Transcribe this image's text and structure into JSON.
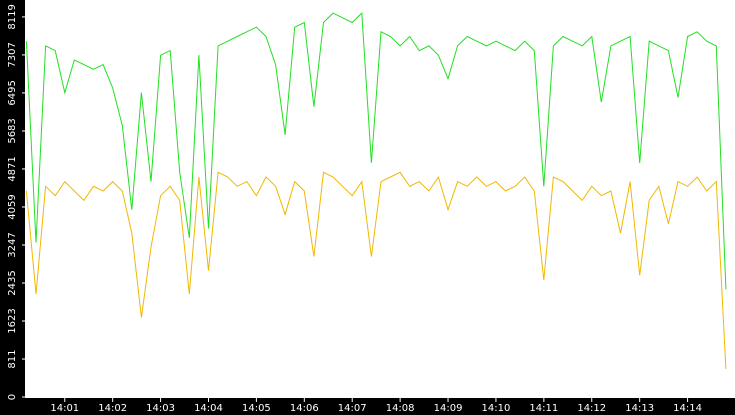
{
  "chart_data": {
    "type": "line",
    "x": [
      0.2,
      0.4,
      0.6,
      0.8,
      1.0,
      1.2,
      1.4,
      1.6,
      1.8,
      2.0,
      2.2,
      2.4,
      2.6,
      2.8,
      3.0,
      3.2,
      3.4,
      3.6,
      3.8,
      4.0,
      4.2,
      4.4,
      4.6,
      4.8,
      5.0,
      5.2,
      5.4,
      5.6,
      5.8,
      6.0,
      6.2,
      6.4,
      6.6,
      6.8,
      7.0,
      7.2,
      7.4,
      7.6,
      7.8,
      8.0,
      8.2,
      8.4,
      8.6,
      8.8,
      9.0,
      9.2,
      9.4,
      9.6,
      9.8,
      10.0,
      10.2,
      10.4,
      10.6,
      10.8,
      11.0,
      11.2,
      11.4,
      11.6,
      11.8,
      12.0,
      12.2,
      12.4,
      12.6,
      12.8,
      13.0,
      13.2,
      13.4,
      13.6,
      13.8,
      14.0,
      14.2,
      14.4,
      14.6,
      14.8
    ],
    "series": [
      {
        "color": "#22e022",
        "values": [
          7600,
          3300,
          7500,
          7400,
          6500,
          7200,
          7100,
          7000,
          7100,
          6600,
          5800,
          4000,
          6500,
          4600,
          7300,
          7400,
          4800,
          3400,
          7300,
          3600,
          7500,
          7600,
          7700,
          7800,
          7900,
          7700,
          7100,
          5600,
          7900,
          8000,
          6200,
          8000,
          8200,
          8100,
          8000,
          8200,
          5000,
          7800,
          7700,
          7500,
          7700,
          7400,
          7500,
          7300,
          6800,
          7500,
          7700,
          7600,
          7500,
          7600,
          7500,
          7400,
          7600,
          7400,
          4500,
          7500,
          7700,
          7600,
          7500,
          7700,
          6300,
          7500,
          7600,
          7700,
          5000,
          7600,
          7500,
          7400,
          6400,
          7700,
          7800,
          7600,
          7500,
          2300
        ]
      },
      {
        "color": "#f0b800",
        "values": [
          4400,
          2200,
          4500,
          4300,
          4600,
          4400,
          4200,
          4500,
          4400,
          4600,
          4400,
          3500,
          1700,
          3200,
          4300,
          4500,
          4200,
          2200,
          4700,
          2700,
          4800,
          4700,
          4500,
          4600,
          4300,
          4700,
          4500,
          3900,
          4600,
          4400,
          3000,
          4800,
          4700,
          4500,
          4300,
          4600,
          3000,
          4600,
          4700,
          4800,
          4500,
          4600,
          4400,
          4700,
          4000,
          4600,
          4500,
          4700,
          4500,
          4600,
          4400,
          4500,
          4700,
          4400,
          2500,
          4700,
          4600,
          4400,
          4200,
          4500,
          4300,
          4400,
          3500,
          4600,
          2600,
          4200,
          4500,
          3700,
          4600,
          4500,
          4700,
          4400,
          4600,
          600
        ]
      }
    ],
    "xlim": [
      0.17,
      14.99
    ],
    "xticks": [
      {
        "value": 1,
        "label": "14:01"
      },
      {
        "value": 2,
        "label": "14:02"
      },
      {
        "value": 3,
        "label": "14:03"
      },
      {
        "value": 4,
        "label": "14:04"
      },
      {
        "value": 5,
        "label": "14:05"
      },
      {
        "value": 6,
        "label": "14:06"
      },
      {
        "value": 7,
        "label": "14:07"
      },
      {
        "value": 8,
        "label": "14:08"
      },
      {
        "value": 9,
        "label": "14:09"
      },
      {
        "value": 10,
        "label": "14:10"
      },
      {
        "value": 11,
        "label": "14:11"
      },
      {
        "value": 12,
        "label": "14:12"
      },
      {
        "value": 13,
        "label": "14:13"
      },
      {
        "value": 14,
        "label": "14:14"
      }
    ],
    "ylim": [
      0,
      8480
    ],
    "yticks": [
      0,
      811,
      1623,
      2435,
      3247,
      4059,
      4871,
      5683,
      6495,
      7307,
      8119
    ],
    "grid": false
  }
}
